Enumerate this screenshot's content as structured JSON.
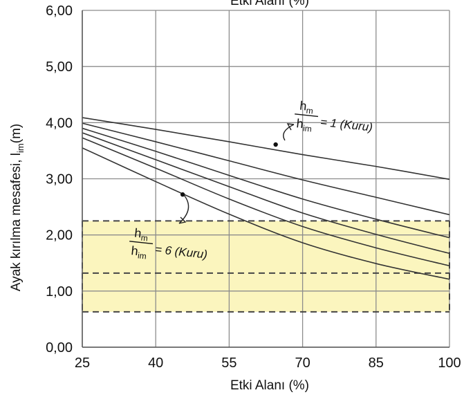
{
  "chart_data": {
    "type": "line",
    "title": "Etki Alanı (%)",
    "xlabel": "Etki Alanı (%)",
    "ylabel": "Ayak kırılma mesafesi, l",
    "ylabel_sub": "im",
    "ylabel_unit": "(m)",
    "xlim": [
      25,
      100
    ],
    "ylim": [
      0,
      6
    ],
    "x_ticks": [
      25,
      40,
      55,
      70,
      85,
      100
    ],
    "x_tick_labels": [
      "25",
      "40",
      "55",
      "70",
      "85",
      "100"
    ],
    "y_ticks": [
      0,
      1,
      2,
      3,
      4,
      5,
      6
    ],
    "y_tick_labels": [
      "0,00",
      "1,00",
      "2,00",
      "3,00",
      "4,00",
      "5,00",
      "6,00"
    ],
    "grid": true,
    "series": [
      {
        "x": [
          25,
          40,
          55,
          70,
          85,
          100
        ],
        "values": [
          4.09,
          3.88,
          3.66,
          3.43,
          3.22,
          2.99
        ]
      },
      {
        "x": [
          25,
          40,
          55,
          70,
          85,
          100
        ],
        "values": [
          3.99,
          3.66,
          3.32,
          2.98,
          2.67,
          2.36
        ]
      },
      {
        "x": [
          25,
          40,
          55,
          70,
          85,
          100
        ],
        "values": [
          3.9,
          3.49,
          3.06,
          2.64,
          2.28,
          1.95
        ]
      },
      {
        "x": [
          25,
          40,
          55,
          70,
          85,
          100
        ],
        "values": [
          3.82,
          3.34,
          2.86,
          2.39,
          2.01,
          1.67
        ]
      },
      {
        "x": [
          25,
          40,
          55,
          70,
          85,
          100
        ],
        "values": [
          3.73,
          3.19,
          2.64,
          2.15,
          1.77,
          1.45
        ]
      },
      {
        "x": [
          25,
          40,
          55,
          70,
          85,
          100
        ],
        "values": [
          3.55,
          2.95,
          2.37,
          1.86,
          1.49,
          1.21
        ]
      }
    ],
    "shaded_region": {
      "y_range": [
        0.63,
        2.25
      ],
      "color": "#fbf5be"
    },
    "dashed_lines_y": [
      0.63,
      1.32,
      2.25
    ],
    "annotations": [
      {
        "numerator": "h",
        "numerator_sub": "m",
        "denominator": "h",
        "denominator_sub": "im",
        "text": "= 1 (Kuru)",
        "point": [
          64.5,
          3.61
        ]
      },
      {
        "numerator": "h",
        "numerator_sub": "m",
        "denominator": "h",
        "denominator_sub": "im",
        "text": "= 6 (Kuru)",
        "point": [
          45.5,
          2.72
        ]
      }
    ],
    "colors": {
      "line": "#333333",
      "grid": "#8c8c8c",
      "dash": "#444444"
    }
  }
}
